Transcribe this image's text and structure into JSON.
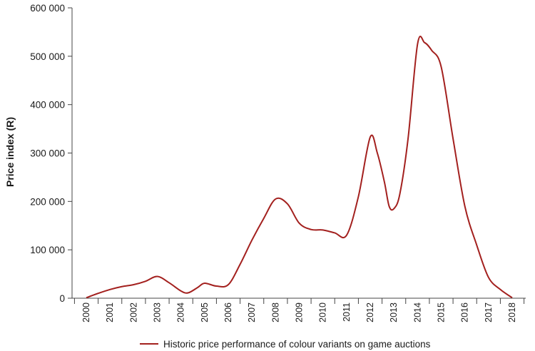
{
  "chart_data": {
    "type": "line",
    "title": "",
    "xlabel": "",
    "ylabel": "Price index (R)",
    "ylim": [
      0,
      600000
    ],
    "yticks": [
      0,
      100000,
      200000,
      300000,
      400000,
      500000,
      600000
    ],
    "ytick_labels": [
      "0",
      "100 000",
      "200 000",
      "300 000",
      "400 000",
      "500 000",
      "600 000"
    ],
    "xlim": [
      2000,
      2018
    ],
    "xticks": [
      2000,
      2001,
      2002,
      2003,
      2004,
      2005,
      2006,
      2007,
      2008,
      2009,
      2010,
      2011,
      2012,
      2013,
      2014,
      2015,
      2016,
      2017,
      2018
    ],
    "xtick_labels": [
      "2000",
      "2001",
      "2002",
      "2003",
      "2004",
      "2005",
      "2006",
      "2007",
      "2008",
      "2009",
      "2010",
      "2011",
      "2012",
      "2013",
      "2014",
      "2015",
      "2016",
      "2017",
      "2018"
    ],
    "grid": false,
    "legend_position": "bottom",
    "series": [
      {
        "name": "Historic price performance of colour variants on game auctions",
        "color": "#a3201e",
        "x": [
          2000,
          2000.5,
          2001,
          2001.5,
          2002,
          2002.5,
          2003,
          2003.5,
          2004,
          2004.3,
          2004.7,
          2005,
          2005.5,
          2006,
          2006.5,
          2007,
          2007.5,
          2008,
          2008.5,
          2009,
          2009.5,
          2010,
          2010.5,
          2011,
          2011.5,
          2012,
          2012.3,
          2012.6,
          2012.8,
          2013,
          2013.25,
          2013.6,
          2014,
          2014.3,
          2014.6,
          2015,
          2015.5,
          2016,
          2016.5,
          2017,
          2017.5,
          2018
        ],
        "y": [
          1000,
          10000,
          18000,
          24000,
          28000,
          35000,
          45000,
          32000,
          15000,
          11000,
          22000,
          31000,
          25000,
          28000,
          70000,
          120000,
          165000,
          205000,
          195000,
          155000,
          142000,
          141000,
          135000,
          130000,
          210000,
          333000,
          300000,
          240000,
          190000,
          185000,
          215000,
          330000,
          525000,
          528000,
          512000,
          478000,
          330000,
          190000,
          110000,
          43000,
          18000,
          1000
        ]
      }
    ]
  }
}
